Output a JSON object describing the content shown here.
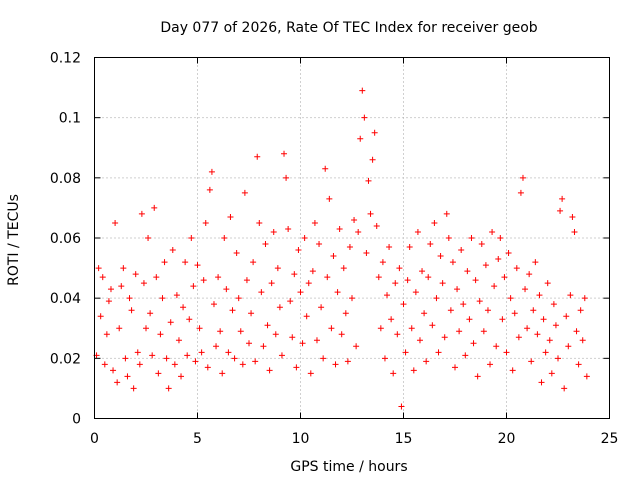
{
  "chart_data": {
    "type": "scatter",
    "title": "Day 077 of 2026, Rate Of TEC Index for receiver geob",
    "xlabel": "GPS time / hours",
    "ylabel": "ROTI / TECUs",
    "xlim": [
      0,
      25
    ],
    "ylim": [
      0,
      0.12
    ],
    "xticks": [
      "0",
      "5",
      "10",
      "15",
      "20",
      "25"
    ],
    "xtick_values": [
      0,
      5,
      10,
      15,
      20,
      25
    ],
    "yticks": [
      "0",
      "0.02",
      "0.04",
      "0.06",
      "0.08",
      "0.1",
      "0.12"
    ],
    "ytick_values": [
      0,
      0.02,
      0.04,
      0.06,
      0.08,
      0.1,
      0.12
    ],
    "grid": true,
    "marker": "plus",
    "color": "#ff0000",
    "series": [
      {
        "points": [
          [
            0.1,
            0.021
          ],
          [
            0.2,
            0.05
          ],
          [
            0.3,
            0.034
          ],
          [
            0.4,
            0.047
          ],
          [
            0.5,
            0.018
          ],
          [
            0.6,
            0.028
          ],
          [
            0.7,
            0.039
          ],
          [
            0.8,
            0.043
          ],
          [
            0.9,
            0.016
          ],
          [
            1.0,
            0.065
          ],
          [
            1.1,
            0.012
          ],
          [
            1.2,
            0.03
          ],
          [
            1.3,
            0.044
          ],
          [
            1.4,
            0.05
          ],
          [
            1.5,
            0.02
          ],
          [
            1.6,
            0.014
          ],
          [
            1.7,
            0.04
          ],
          [
            1.8,
            0.036
          ],
          [
            1.9,
            0.01
          ],
          [
            2.0,
            0.048
          ],
          [
            2.1,
            0.022
          ],
          [
            2.2,
            0.018
          ],
          [
            2.3,
            0.068
          ],
          [
            2.4,
            0.045
          ],
          [
            2.5,
            0.03
          ],
          [
            2.6,
            0.06
          ],
          [
            2.7,
            0.035
          ],
          [
            2.8,
            0.021
          ],
          [
            2.9,
            0.07
          ],
          [
            3.0,
            0.047
          ],
          [
            3.1,
            0.015
          ],
          [
            3.2,
            0.028
          ],
          [
            3.3,
            0.04
          ],
          [
            3.4,
            0.052
          ],
          [
            3.5,
            0.02
          ],
          [
            3.6,
            0.01
          ],
          [
            3.7,
            0.032
          ],
          [
            3.8,
            0.056
          ],
          [
            3.9,
            0.018
          ],
          [
            4.0,
            0.041
          ],
          [
            4.1,
            0.026
          ],
          [
            4.2,
            0.014
          ],
          [
            4.3,
            0.037
          ],
          [
            4.4,
            0.052
          ],
          [
            4.5,
            0.021
          ],
          [
            4.6,
            0.033
          ],
          [
            4.7,
            0.06
          ],
          [
            4.8,
            0.044
          ],
          [
            4.9,
            0.019
          ],
          [
            5.0,
            0.051
          ],
          [
            5.1,
            0.03
          ],
          [
            5.2,
            0.022
          ],
          [
            5.3,
            0.046
          ],
          [
            5.4,
            0.065
          ],
          [
            5.5,
            0.017
          ],
          [
            5.6,
            0.076
          ],
          [
            5.7,
            0.082
          ],
          [
            5.8,
            0.038
          ],
          [
            5.9,
            0.024
          ],
          [
            6.0,
            0.047
          ],
          [
            6.1,
            0.029
          ],
          [
            6.2,
            0.015
          ],
          [
            6.3,
            0.06
          ],
          [
            6.4,
            0.043
          ],
          [
            6.5,
            0.022
          ],
          [
            6.6,
            0.067
          ],
          [
            6.7,
            0.036
          ],
          [
            6.8,
            0.02
          ],
          [
            6.9,
            0.055
          ],
          [
            7.0,
            0.04
          ],
          [
            7.1,
            0.029
          ],
          [
            7.2,
            0.018
          ],
          [
            7.3,
            0.075
          ],
          [
            7.4,
            0.046
          ],
          [
            7.5,
            0.025
          ],
          [
            7.6,
            0.035
          ],
          [
            7.7,
            0.052
          ],
          [
            7.8,
            0.019
          ],
          [
            7.9,
            0.087
          ],
          [
            8.0,
            0.065
          ],
          [
            8.1,
            0.042
          ],
          [
            8.2,
            0.024
          ],
          [
            8.3,
            0.058
          ],
          [
            8.4,
            0.031
          ],
          [
            8.5,
            0.016
          ],
          [
            8.6,
            0.045
          ],
          [
            8.7,
            0.062
          ],
          [
            8.8,
            0.028
          ],
          [
            8.9,
            0.05
          ],
          [
            9.0,
            0.037
          ],
          [
            9.1,
            0.021
          ],
          [
            9.2,
            0.088
          ],
          [
            9.3,
            0.08
          ],
          [
            9.4,
            0.063
          ],
          [
            9.5,
            0.039
          ],
          [
            9.6,
            0.027
          ],
          [
            9.7,
            0.048
          ],
          [
            9.8,
            0.017
          ],
          [
            9.9,
            0.056
          ],
          [
            10.0,
            0.042
          ],
          [
            10.1,
            0.025
          ],
          [
            10.2,
            0.06
          ],
          [
            10.3,
            0.034
          ],
          [
            10.4,
            0.045
          ],
          [
            10.5,
            0.015
          ],
          [
            10.6,
            0.049
          ],
          [
            10.7,
            0.065
          ],
          [
            10.8,
            0.026
          ],
          [
            10.9,
            0.058
          ],
          [
            11.0,
            0.037
          ],
          [
            11.1,
            0.02
          ],
          [
            11.2,
            0.083
          ],
          [
            11.3,
            0.047
          ],
          [
            11.4,
            0.073
          ],
          [
            11.5,
            0.03
          ],
          [
            11.6,
            0.054
          ],
          [
            11.7,
            0.018
          ],
          [
            11.8,
            0.042
          ],
          [
            11.9,
            0.063
          ],
          [
            12.0,
            0.028
          ],
          [
            12.1,
            0.05
          ],
          [
            12.2,
            0.035
          ],
          [
            12.3,
            0.019
          ],
          [
            12.4,
            0.057
          ],
          [
            12.5,
            0.04
          ],
          [
            12.6,
            0.066
          ],
          [
            12.7,
            0.024
          ],
          [
            12.8,
            0.062
          ],
          [
            12.9,
            0.093
          ],
          [
            13.0,
            0.109
          ],
          [
            13.1,
            0.1
          ],
          [
            13.2,
            0.055
          ],
          [
            13.3,
            0.079
          ],
          [
            13.4,
            0.068
          ],
          [
            13.5,
            0.086
          ],
          [
            13.6,
            0.095
          ],
          [
            13.7,
            0.064
          ],
          [
            13.8,
            0.047
          ],
          [
            13.9,
            0.03
          ],
          [
            14.0,
            0.052
          ],
          [
            14.1,
            0.02
          ],
          [
            14.2,
            0.041
          ],
          [
            14.3,
            0.057
          ],
          [
            14.4,
            0.033
          ],
          [
            14.5,
            0.015
          ],
          [
            14.6,
            0.045
          ],
          [
            14.7,
            0.028
          ],
          [
            14.8,
            0.05
          ],
          [
            14.9,
            0.004
          ],
          [
            15.0,
            0.038
          ],
          [
            15.1,
            0.022
          ],
          [
            15.2,
            0.046
          ],
          [
            15.3,
            0.057
          ],
          [
            15.4,
            0.03
          ],
          [
            15.5,
            0.016
          ],
          [
            15.6,
            0.042
          ],
          [
            15.7,
            0.062
          ],
          [
            15.8,
            0.026
          ],
          [
            15.9,
            0.049
          ],
          [
            16.0,
            0.035
          ],
          [
            16.1,
            0.019
          ],
          [
            16.2,
            0.047
          ],
          [
            16.3,
            0.058
          ],
          [
            16.4,
            0.031
          ],
          [
            16.5,
            0.065
          ],
          [
            16.6,
            0.04
          ],
          [
            16.7,
            0.022
          ],
          [
            16.8,
            0.054
          ],
          [
            16.9,
            0.045
          ],
          [
            17.0,
            0.027
          ],
          [
            17.1,
            0.068
          ],
          [
            17.2,
            0.06
          ],
          [
            17.3,
            0.036
          ],
          [
            17.4,
            0.052
          ],
          [
            17.5,
            0.017
          ],
          [
            17.6,
            0.043
          ],
          [
            17.7,
            0.029
          ],
          [
            17.8,
            0.056
          ],
          [
            17.9,
            0.038
          ],
          [
            18.0,
            0.021
          ],
          [
            18.1,
            0.049
          ],
          [
            18.2,
            0.033
          ],
          [
            18.3,
            0.06
          ],
          [
            18.4,
            0.025
          ],
          [
            18.5,
            0.046
          ],
          [
            18.6,
            0.014
          ],
          [
            18.7,
            0.039
          ],
          [
            18.8,
            0.058
          ],
          [
            18.9,
            0.029
          ],
          [
            19.0,
            0.051
          ],
          [
            19.1,
            0.036
          ],
          [
            19.2,
            0.018
          ],
          [
            19.3,
            0.062
          ],
          [
            19.4,
            0.044
          ],
          [
            19.5,
            0.024
          ],
          [
            19.6,
            0.053
          ],
          [
            19.7,
            0.06
          ],
          [
            19.8,
            0.033
          ],
          [
            19.9,
            0.047
          ],
          [
            20.0,
            0.022
          ],
          [
            20.1,
            0.055
          ],
          [
            20.2,
            0.04
          ],
          [
            20.3,
            0.016
          ],
          [
            20.4,
            0.035
          ],
          [
            20.5,
            0.05
          ],
          [
            20.6,
            0.027
          ],
          [
            20.7,
            0.075
          ],
          [
            20.8,
            0.08
          ],
          [
            20.9,
            0.043
          ],
          [
            21.0,
            0.03
          ],
          [
            21.1,
            0.048
          ],
          [
            21.2,
            0.019
          ],
          [
            21.3,
            0.036
          ],
          [
            21.4,
            0.052
          ],
          [
            21.5,
            0.028
          ],
          [
            21.6,
            0.041
          ],
          [
            21.7,
            0.012
          ],
          [
            21.8,
            0.033
          ],
          [
            21.9,
            0.022
          ],
          [
            22.0,
            0.045
          ],
          [
            22.1,
            0.026
          ],
          [
            22.2,
            0.015
          ],
          [
            22.3,
            0.038
          ],
          [
            22.4,
            0.031
          ],
          [
            22.5,
            0.02
          ],
          [
            22.6,
            0.069
          ],
          [
            22.7,
            0.073
          ],
          [
            22.8,
            0.01
          ],
          [
            22.9,
            0.034
          ],
          [
            23.0,
            0.024
          ],
          [
            23.1,
            0.041
          ],
          [
            23.2,
            0.067
          ],
          [
            23.3,
            0.062
          ],
          [
            23.4,
            0.029
          ],
          [
            23.5,
            0.018
          ],
          [
            23.6,
            0.036
          ],
          [
            23.7,
            0.026
          ],
          [
            23.8,
            0.04
          ],
          [
            23.9,
            0.014
          ]
        ]
      }
    ]
  }
}
